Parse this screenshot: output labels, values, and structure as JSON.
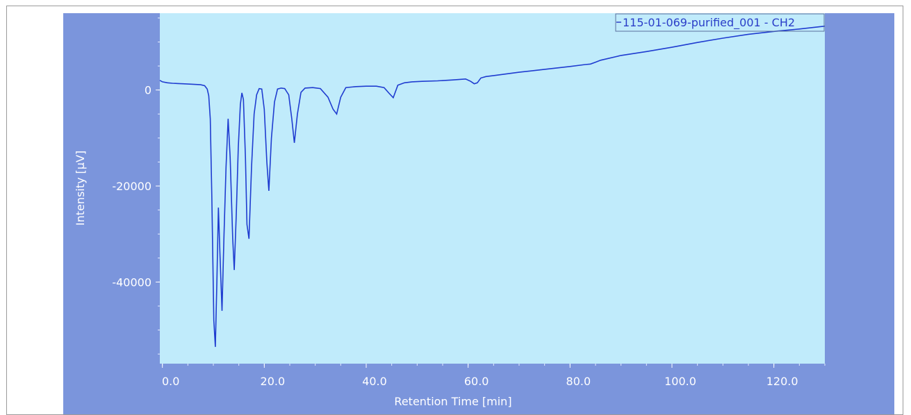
{
  "chart_data": {
    "type": "line",
    "title": "",
    "xlabel": "Retention Time [min]",
    "ylabel": "Intensity [µV]",
    "xlim": [
      -0.5,
      130
    ],
    "ylim": [
      -57000,
      16000
    ],
    "x_ticks": [
      0,
      20,
      40,
      60,
      80,
      100,
      120
    ],
    "x_tick_labels": [
      "0.0",
      "20.0",
      "40.0",
      "60.0",
      "80.0",
      "100.0",
      "120.0"
    ],
    "y_ticks": [
      0,
      -20000,
      -40000
    ],
    "y_tick_labels": [
      "0",
      "-20000",
      "-40000"
    ],
    "grid": false,
    "legend_position": "top-right",
    "colors": {
      "outer_background": "#7b95dc",
      "plot_background": "#c0ebfb",
      "line": "#1f3cd0",
      "text": "#ffffff",
      "legend_text": "#2a3ec8"
    },
    "series": [
      {
        "name": "115-01-069-purified_001 - CH2",
        "x": [
          -0.5,
          0,
          1,
          2,
          4,
          6,
          7.5,
          8.3,
          8.8,
          9.1,
          9.4,
          9.7,
          10.1,
          10.4,
          10.7,
          11.0,
          11.3,
          11.7,
          12.1,
          12.5,
          12.9,
          13.3,
          13.8,
          14.1,
          14.5,
          14.9,
          15.3,
          15.6,
          15.9,
          16.3,
          16.6,
          17.0,
          17.5,
          18.0,
          18.5,
          19.0,
          19.5,
          20.0,
          20.5,
          20.9,
          21.4,
          22.0,
          22.6,
          23.3,
          24.0,
          24.8,
          25.4,
          25.9,
          26.5,
          27.2,
          28.0,
          29.5,
          31.0,
          32.5,
          33.5,
          34.2,
          35.0,
          36.0,
          38.0,
          40.0,
          42.0,
          43.5,
          44.5,
          45.3,
          46.2,
          47.5,
          49.0,
          51.0,
          54.0,
          57.0,
          59.5,
          60.5,
          61.2,
          61.8,
          62.5,
          63.5,
          65.0,
          70.0,
          75.0,
          80.0,
          83.0,
          84.0,
          85.0,
          86.0,
          90.0,
          95.0,
          100.0,
          105.0,
          110.0,
          115.0,
          120.0,
          125.0,
          130.0
        ],
        "y": [
          2000,
          1700,
          1500,
          1400,
          1300,
          1200,
          1100,
          900,
          200,
          -1200,
          -6000,
          -22000,
          -48000,
          -53500,
          -40000,
          -24500,
          -34000,
          -46000,
          -30000,
          -16000,
          -6000,
          -14000,
          -31000,
          -37500,
          -26000,
          -12000,
          -3000,
          -600,
          -2000,
          -14000,
          -28000,
          -31000,
          -16000,
          -5000,
          -1000,
          300,
          200,
          -4000,
          -15000,
          -21000,
          -10000,
          -2500,
          200,
          400,
          300,
          -1000,
          -6000,
          -11000,
          -5000,
          -500,
          400,
          500,
          300,
          -1500,
          -4000,
          -5000,
          -1500,
          500,
          700,
          800,
          800,
          500,
          -700,
          -1600,
          1000,
          1500,
          1700,
          1800,
          1900,
          2100,
          2300,
          1800,
          1300,
          1500,
          2500,
          2800,
          3000,
          3700,
          4300,
          4900,
          5300,
          5400,
          5800,
          6200,
          7200,
          8000,
          8900,
          9900,
          10800,
          11600,
          12200,
          12700,
          13300
        ]
      }
    ]
  }
}
